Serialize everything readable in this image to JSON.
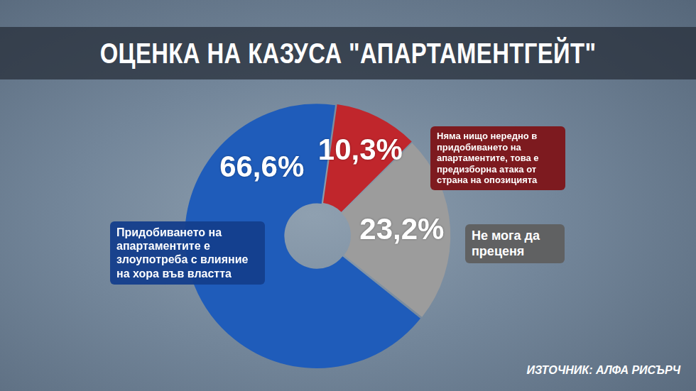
{
  "chart_data": {
    "type": "doughnut",
    "title": "ОЦЕНКА НА КАЗУСА \"АПАРТАМЕНТГЕЙТ\"",
    "source": "ИЗТОЧНИК: АЛФА РИСЪРЧ",
    "categories": [
      "Няма нищо нередно в придобиването на апартаментите, това е предизборна атака от страна на опозицията",
      "Не мога да преценя",
      "Придобиването на апартаментите е злоупотреба с влияние на хора във властта"
    ],
    "values": [
      10.3,
      23.2,
      66.6
    ],
    "value_labels": [
      "10,3%",
      "23,2%",
      "66,6%"
    ],
    "colors": [
      "#c0262c",
      "#9c9c9c",
      "#1f5cba"
    ],
    "data_labels": true,
    "legend": false
  }
}
